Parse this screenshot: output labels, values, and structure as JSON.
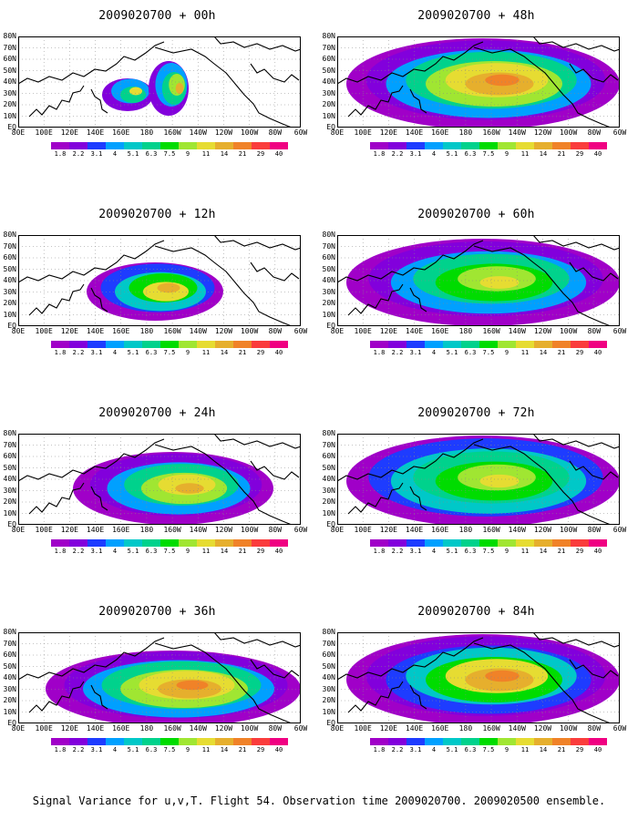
{
  "panels": [
    {
      "title": "2009020700 + 00h"
    },
    {
      "title": "2009020700 + 48h"
    },
    {
      "title": "2009020700 + 12h"
    },
    {
      "title": "2009020700 + 60h"
    },
    {
      "title": "2009020700 + 24h"
    },
    {
      "title": "2009020700 + 72h"
    },
    {
      "title": "2009020700 + 36h"
    },
    {
      "title": "2009020700 + 84h"
    }
  ],
  "lat_labels": [
    "80N",
    "70N",
    "60N",
    "50N",
    "40N",
    "30N",
    "20N",
    "10N",
    "EQ"
  ],
  "lon_labels": [
    "80E",
    "100E",
    "120E",
    "140E",
    "160E",
    "180",
    "160W",
    "140W",
    "120W",
    "100W",
    "80W",
    "60W"
  ],
  "legend": {
    "labels": [
      "1.8",
      "2.2",
      "3.1",
      "4",
      "5.1",
      "6.3",
      "7.5",
      "9",
      "11",
      "14",
      "21",
      "29",
      "40"
    ],
    "colors": [
      "#a000c8",
      "#8200dc",
      "#1e3cff",
      "#00a0ff",
      "#00c8c8",
      "#00d28c",
      "#00dc00",
      "#a0e632",
      "#e6dc32",
      "#e6af2d",
      "#f08228",
      "#fa3c3c",
      "#f00082"
    ]
  },
  "caption": "Signal Variance for u,v,T. Flight 54. Observation time 2009020700. 2009020500 ensemble."
}
